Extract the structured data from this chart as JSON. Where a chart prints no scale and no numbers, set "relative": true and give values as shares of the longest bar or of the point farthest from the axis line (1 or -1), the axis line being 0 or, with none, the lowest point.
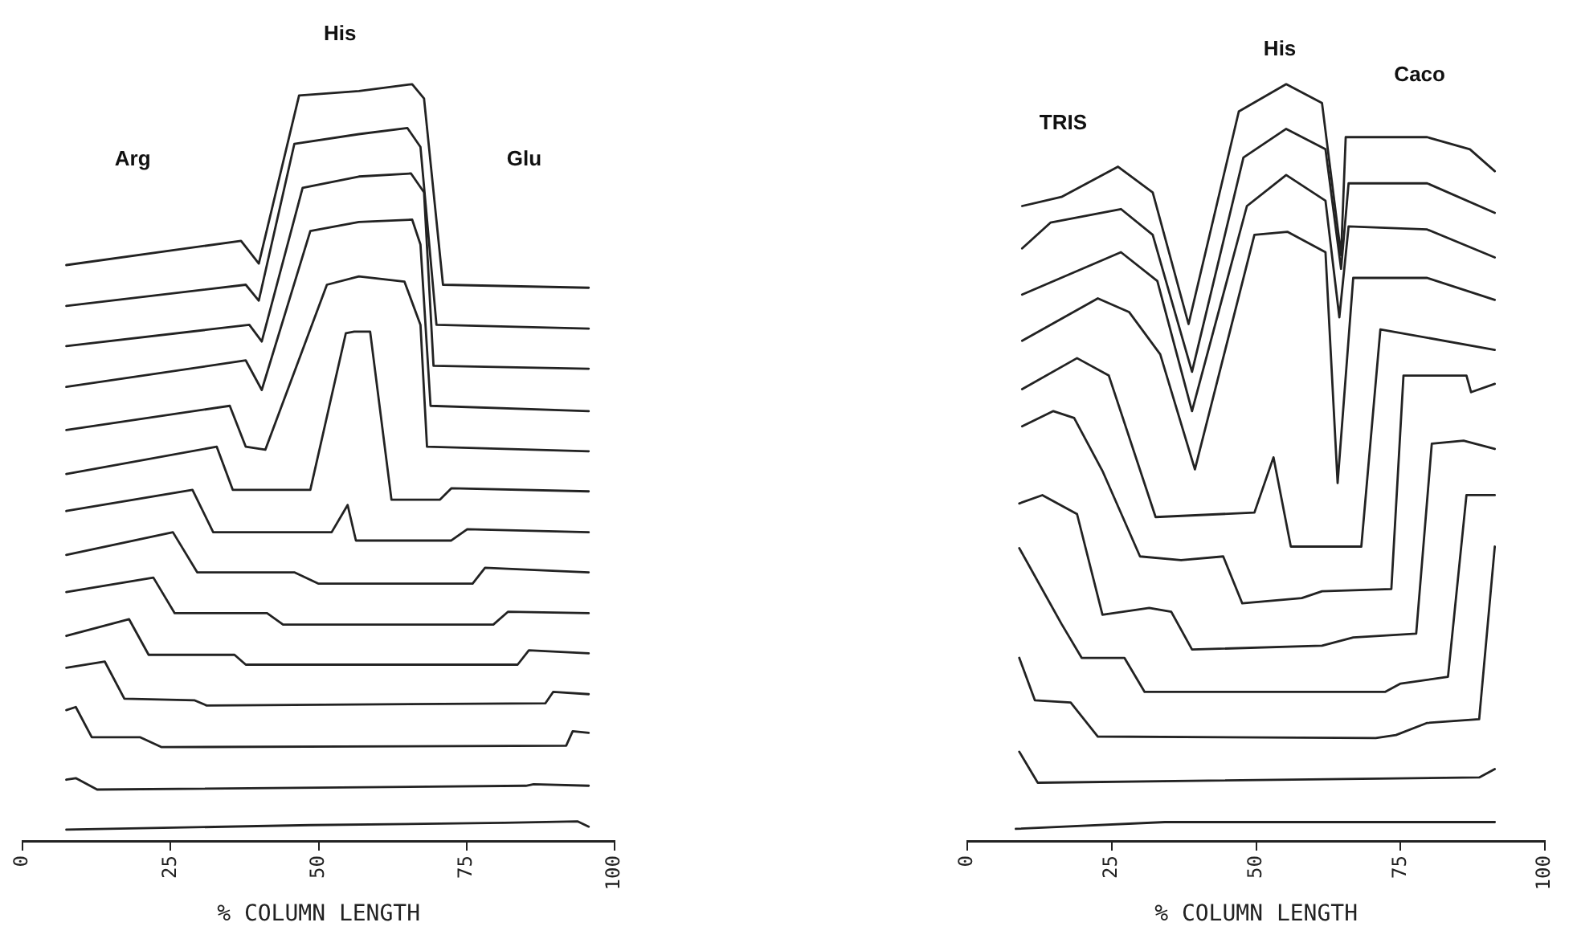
{
  "chart_data": [
    {
      "type": "line",
      "relative": true,
      "xlabel": "% COLUMN LENGTH",
      "xlim": [
        0,
        100
      ],
      "xticks": [
        0,
        25,
        50,
        75,
        100
      ],
      "grid": false,
      "legend": false,
      "marker": "none",
      "line_style": "solid",
      "annotations": [
        "Arg",
        "His",
        "Glu"
      ],
      "series": [
        {
          "color": "#222222",
          "x": [
            7.4,
            36.9,
            39.9,
            46.7,
            56.8,
            65.8,
            67.8,
            71.0,
            95.6
          ],
          "values": [
            0.761,
            0.793,
            0.763,
            0.985,
            0.991,
            1.0,
            0.981,
            0.735,
            0.731
          ]
        },
        {
          "color": "#222222",
          "x": [
            7.4,
            37.7,
            39.9,
            45.9,
            56.8,
            65.0,
            67.2,
            69.9,
            95.6
          ],
          "values": [
            0.707,
            0.735,
            0.714,
            0.921,
            0.934,
            0.942,
            0.917,
            0.682,
            0.677
          ]
        },
        {
          "color": "#222222",
          "x": [
            7.4,
            38.3,
            40.4,
            47.3,
            56.8,
            65.6,
            67.8,
            69.4,
            95.6
          ],
          "values": [
            0.654,
            0.682,
            0.66,
            0.863,
            0.878,
            0.882,
            0.857,
            0.628,
            0.624
          ]
        },
        {
          "color": "#222222",
          "x": [
            7.4,
            37.7,
            40.4,
            48.6,
            56.8,
            65.8,
            67.2,
            68.9,
            95.6
          ],
          "values": [
            0.6,
            0.635,
            0.596,
            0.806,
            0.818,
            0.821,
            0.788,
            0.575,
            0.568
          ]
        },
        {
          "color": "#222222",
          "x": [
            7.4,
            35.0,
            37.7,
            41.0,
            51.4,
            56.8,
            64.5,
            67.2,
            68.3,
            95.6
          ],
          "values": [
            0.543,
            0.575,
            0.521,
            0.517,
            0.735,
            0.746,
            0.739,
            0.682,
            0.521,
            0.515
          ]
        },
        {
          "color": "#222222",
          "x": [
            7.4,
            32.8,
            35.5,
            48.6,
            54.6,
            56.0,
            58.7,
            62.3,
            70.5,
            72.4,
            95.6
          ],
          "values": [
            0.485,
            0.521,
            0.464,
            0.464,
            0.671,
            0.673,
            0.673,
            0.451,
            0.451,
            0.466,
            0.462
          ]
        },
        {
          "color": "#222222",
          "x": [
            7.4,
            28.7,
            32.2,
            52.2,
            54.9,
            56.3,
            72.4,
            75.1,
            95.6
          ],
          "values": [
            0.436,
            0.464,
            0.408,
            0.408,
            0.444,
            0.397,
            0.397,
            0.412,
            0.408
          ]
        },
        {
          "color": "#222222",
          "x": [
            7.4,
            25.4,
            29.5,
            45.9,
            50.0,
            76.0,
            78.1,
            95.6
          ],
          "values": [
            0.378,
            0.408,
            0.355,
            0.355,
            0.34,
            0.34,
            0.361,
            0.355
          ]
        },
        {
          "color": "#222222",
          "x": [
            7.4,
            22.1,
            25.7,
            41.3,
            44.0,
            79.5,
            82.0,
            95.6
          ],
          "values": [
            0.329,
            0.348,
            0.301,
            0.301,
            0.286,
            0.286,
            0.303,
            0.301
          ]
        },
        {
          "color": "#222222",
          "x": [
            7.4,
            18.0,
            21.3,
            35.8,
            37.7,
            83.6,
            85.5,
            95.6
          ],
          "values": [
            0.271,
            0.293,
            0.246,
            0.246,
            0.233,
            0.233,
            0.252,
            0.248
          ]
        },
        {
          "color": "#222222",
          "x": [
            7.4,
            13.9,
            17.2,
            29.0,
            31.1,
            88.3,
            89.6,
            95.6
          ],
          "values": [
            0.229,
            0.237,
            0.188,
            0.186,
            0.179,
            0.182,
            0.197,
            0.194
          ]
        },
        {
          "color": "#222222",
          "x": [
            7.4,
            9.0,
            11.7,
            19.9,
            23.5,
            91.8,
            92.9,
            95.6
          ],
          "values": [
            0.173,
            0.177,
            0.137,
            0.137,
            0.124,
            0.126,
            0.145,
            0.143
          ]
        },
        {
          "color": "#222222",
          "x": [
            7.4,
            9.0,
            12.6,
            85.0,
            86.3,
            95.6
          ],
          "values": [
            0.081,
            0.083,
            0.068,
            0.073,
            0.075,
            0.073
          ]
        },
        {
          "color": "#222222",
          "x": [
            7.4,
            48.6,
            81.4,
            93.7,
            95.6
          ],
          "values": [
            0.015,
            0.021,
            0.024,
            0.026,
            0.019
          ]
        }
      ]
    },
    {
      "type": "line",
      "relative": true,
      "xlabel": "% COLUMN LENGTH",
      "xlim": [
        0,
        100
      ],
      "xticks": [
        0,
        25,
        50,
        75,
        100
      ],
      "grid": false,
      "legend": false,
      "marker": "none",
      "line_style": "solid",
      "annotations": [
        "TRIS",
        "His",
        "Caco"
      ],
      "series": [
        {
          "color": "#222222",
          "x": [
            9.5,
            16.3,
            26.1,
            32.1,
            38.3,
            47.0,
            55.2,
            61.4,
            64.7,
            65.5,
            79.6,
            87.0,
            91.3
          ],
          "values": [
            0.839,
            0.851,
            0.891,
            0.857,
            0.683,
            0.964,
            1.0,
            0.975,
            0.774,
            0.93,
            0.93,
            0.914,
            0.885
          ]
        },
        {
          "color": "#222222",
          "x": [
            9.5,
            14.4,
            26.6,
            32.1,
            38.9,
            47.8,
            55.2,
            62.0,
            64.7,
            66.0,
            79.6,
            91.3
          ],
          "values": [
            0.783,
            0.817,
            0.835,
            0.801,
            0.62,
            0.903,
            0.941,
            0.914,
            0.756,
            0.869,
            0.869,
            0.83
          ]
        },
        {
          "color": "#222222",
          "x": [
            9.5,
            26.6,
            32.9,
            38.9,
            48.4,
            55.2,
            62.0,
            64.4,
            66.0,
            79.6,
            91.3
          ],
          "values": [
            0.722,
            0.778,
            0.74,
            0.568,
            0.839,
            0.88,
            0.846,
            0.692,
            0.812,
            0.808,
            0.771
          ]
        },
        {
          "color": "#222222",
          "x": [
            9.5,
            22.6,
            28.0,
            33.4,
            39.4,
            49.7,
            55.4,
            62.0,
            64.1,
            66.8,
            79.6,
            91.3
          ],
          "values": [
            0.661,
            0.717,
            0.699,
            0.643,
            0.491,
            0.801,
            0.805,
            0.778,
            0.473,
            0.744,
            0.744,
            0.715
          ]
        },
        {
          "color": "#222222",
          "x": [
            9.5,
            19.0,
            24.5,
            32.6,
            49.7,
            53.0,
            56.0,
            68.2,
            71.5,
            91.3
          ],
          "values": [
            0.597,
            0.638,
            0.615,
            0.428,
            0.434,
            0.507,
            0.389,
            0.389,
            0.676,
            0.649
          ]
        },
        {
          "color": "#222222",
          "x": [
            9.5,
            14.9,
            18.5,
            23.4,
            29.9,
            37.0,
            44.3,
            47.6,
            57.9,
            61.4,
            73.4,
            75.5,
            86.4,
            87.2,
            91.3
          ],
          "values": [
            0.548,
            0.568,
            0.559,
            0.489,
            0.376,
            0.371,
            0.376,
            0.314,
            0.321,
            0.33,
            0.333,
            0.615,
            0.615,
            0.593,
            0.604
          ]
        },
        {
          "color": "#222222",
          "x": [
            9.0,
            13.0,
            19.0,
            23.4,
            31.5,
            35.3,
            38.9,
            61.4,
            66.8,
            77.7,
            80.4,
            85.9,
            91.3
          ],
          "values": [
            0.446,
            0.457,
            0.432,
            0.299,
            0.308,
            0.303,
            0.253,
            0.258,
            0.269,
            0.274,
            0.525,
            0.529,
            0.518
          ]
        },
        {
          "color": "#222222",
          "x": [
            9.0,
            16.3,
            19.8,
            27.2,
            30.7,
            72.3,
            75.0,
            83.2,
            86.4,
            91.3
          ],
          "values": [
            0.387,
            0.287,
            0.242,
            0.242,
            0.197,
            0.197,
            0.208,
            0.217,
            0.457,
            0.457
          ]
        },
        {
          "color": "#222222",
          "x": [
            9.0,
            11.7,
            17.9,
            22.6,
            70.7,
            74.2,
            79.6,
            88.6,
            91.3
          ],
          "values": [
            0.242,
            0.186,
            0.183,
            0.138,
            0.136,
            0.14,
            0.156,
            0.161,
            0.389
          ]
        },
        {
          "color": "#222222",
          "x": [
            9.0,
            12.2,
            88.6,
            91.3
          ],
          "values": [
            0.118,
            0.077,
            0.084,
            0.095
          ]
        },
        {
          "color": "#222222",
          "x": [
            8.4,
            34.2,
            91.3
          ],
          "values": [
            0.016,
            0.025,
            0.025
          ]
        }
      ]
    }
  ]
}
